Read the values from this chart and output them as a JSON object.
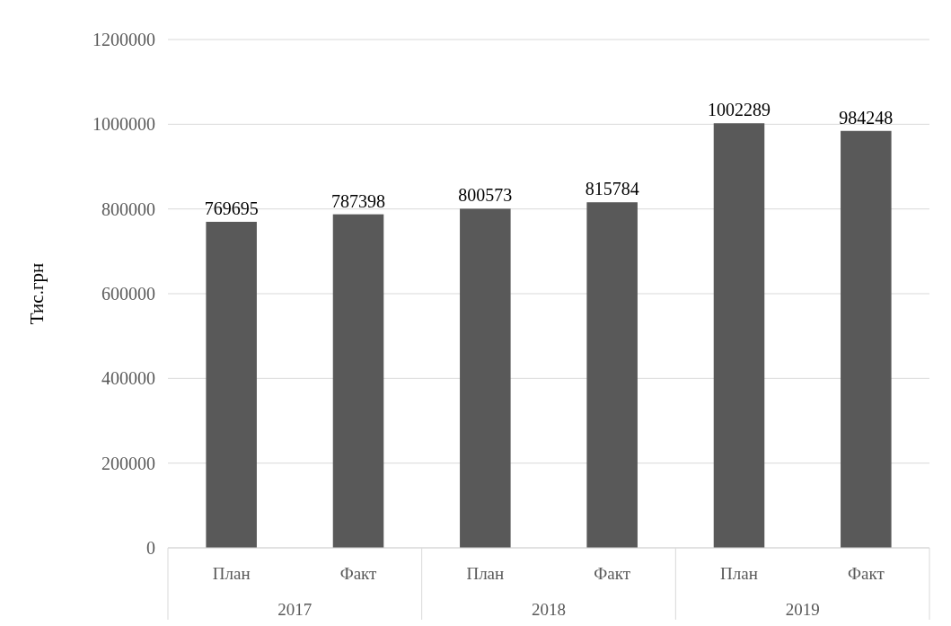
{
  "chart_data": {
    "type": "bar",
    "ylabel": "Тис.грн",
    "categories": [
      "План",
      "Факт",
      "План",
      "Факт",
      "План",
      "Факт"
    ],
    "values": [
      769695,
      787398,
      800573,
      815784,
      1002289,
      984248
    ],
    "color": "#595959",
    "ylim": [
      0,
      1200000
    ],
    "yticks": [
      0,
      200000,
      400000,
      600000,
      800000,
      1000000,
      1200000
    ],
    "grid": "y",
    "data_labels": true,
    "annotations": [
      "2017",
      "2018",
      "2019"
    ]
  }
}
